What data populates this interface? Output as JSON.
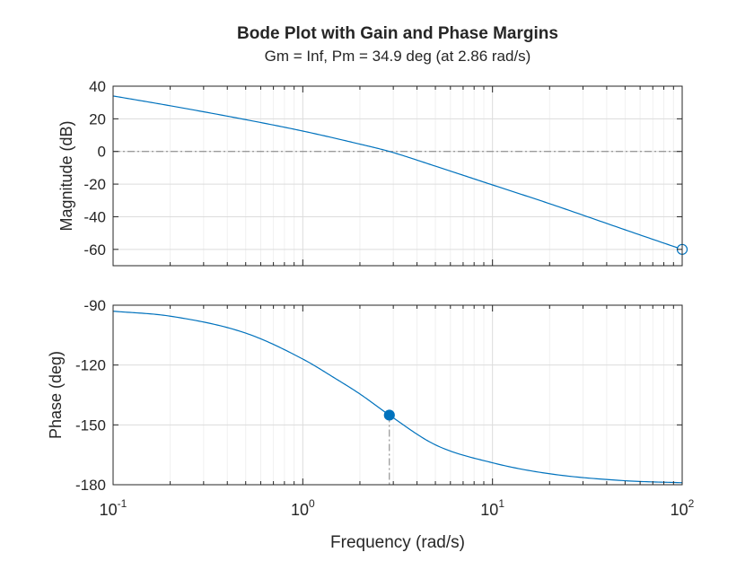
{
  "chart_data": {
    "type": "line",
    "title": "Bode Plot with Gain and Phase Margins",
    "subtitle": "Gm = Inf,  Pm = 34.9 deg (at 2.86 rad/s)",
    "xlabel": "Frequency (rad/s)",
    "x_scale": "log",
    "xlim": [
      0.1,
      100
    ],
    "x_ticks": [
      {
        "value": 0.1,
        "base": "10",
        "exp": "-1"
      },
      {
        "value": 1,
        "base": "10",
        "exp": "0"
      },
      {
        "value": 10,
        "base": "10",
        "exp": "1"
      },
      {
        "value": 100,
        "base": "10",
        "exp": "2"
      }
    ],
    "grid": true,
    "line_color": "#0072BD",
    "reference_line_color": "#7f7f7f",
    "panels": [
      {
        "name": "magnitude",
        "ylabel": "Magnitude (dB)",
        "ylim": [
          -70,
          40
        ],
        "y_ticks": [
          40,
          20,
          0,
          -20,
          -40,
          -60
        ],
        "y_tick_labels": [
          "40",
          "20",
          "0",
          "-20",
          "-40",
          "-60"
        ],
        "reference_line": 0,
        "series": {
          "x": [
            0.1,
            0.2,
            0.5,
            1,
            2,
            2.86,
            5,
            10,
            20,
            50,
            100
          ],
          "y": [
            34,
            28,
            19.5,
            12.5,
            4.5,
            0,
            -9,
            -20.5,
            -32,
            -48,
            -60
          ]
        },
        "marker": {
          "x": 100,
          "y": -60,
          "style": "open-circle"
        }
      },
      {
        "name": "phase",
        "ylabel": "Phase (deg)",
        "ylim": [
          -180,
          -90
        ],
        "y_ticks": [
          -90,
          -120,
          -150,
          -180
        ],
        "y_tick_labels": [
          "-90",
          "-120",
          "-150",
          "-180"
        ],
        "reference_line": -180,
        "series": {
          "x": [
            0.1,
            0.2,
            0.5,
            1,
            1.5,
            2,
            2.86,
            5,
            10,
            20,
            50,
            100
          ],
          "y": [
            -93,
            -95.5,
            -104,
            -117,
            -127,
            -134.5,
            -145.1,
            -160,
            -169,
            -174.5,
            -178,
            -179
          ]
        },
        "marker": {
          "x": 2.86,
          "y": -145.1,
          "style": "filled-circle",
          "drop_line_to": -180
        }
      }
    ]
  }
}
